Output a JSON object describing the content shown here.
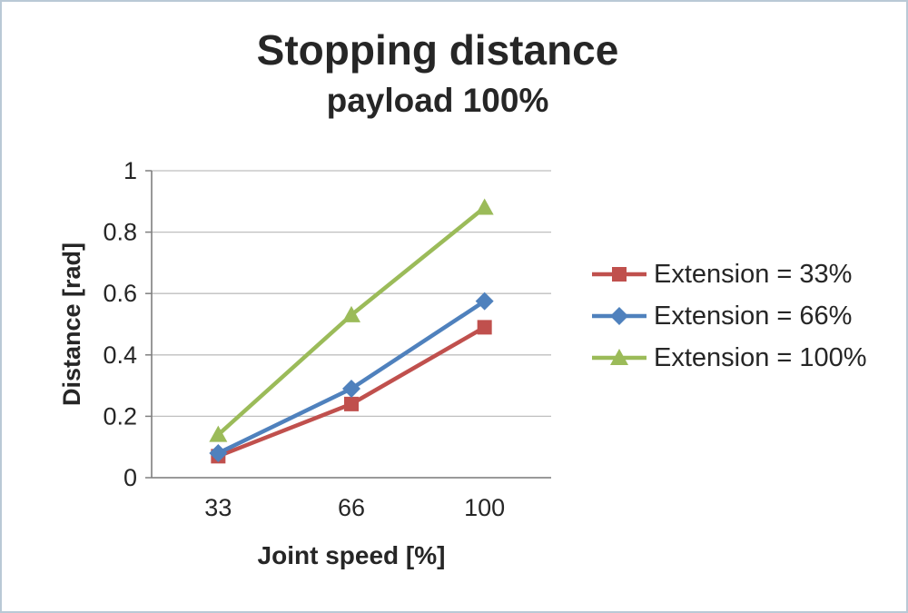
{
  "chart_data": {
    "type": "line",
    "title": "Stopping distance",
    "subtitle": "payload 100%",
    "xlabel": "Joint speed [%]",
    "ylabel": "Distance [rad]",
    "categories": [
      "33",
      "66",
      "100"
    ],
    "series": [
      {
        "name": "Extension = 33%",
        "values": [
          0.07,
          0.24,
          0.49
        ],
        "color": "#C0504D",
        "marker": "square"
      },
      {
        "name": "Extension = 66%",
        "values": [
          0.08,
          0.29,
          0.575
        ],
        "color": "#4F81BD",
        "marker": "diamond"
      },
      {
        "name": "Extension = 100%",
        "values": [
          0.14,
          0.53,
          0.88
        ],
        "color": "#9BBB59",
        "marker": "triangle"
      }
    ],
    "ylim": [
      0,
      1
    ],
    "yticks": [
      0,
      0.2,
      0.4,
      0.6,
      0.8,
      1
    ],
    "grid": true,
    "legend_position": "right",
    "colors": {
      "axis": "#7F7F7F",
      "gridline": "#BFBFBF",
      "text": "#262626",
      "frame_border": "#b9c9d6"
    }
  }
}
